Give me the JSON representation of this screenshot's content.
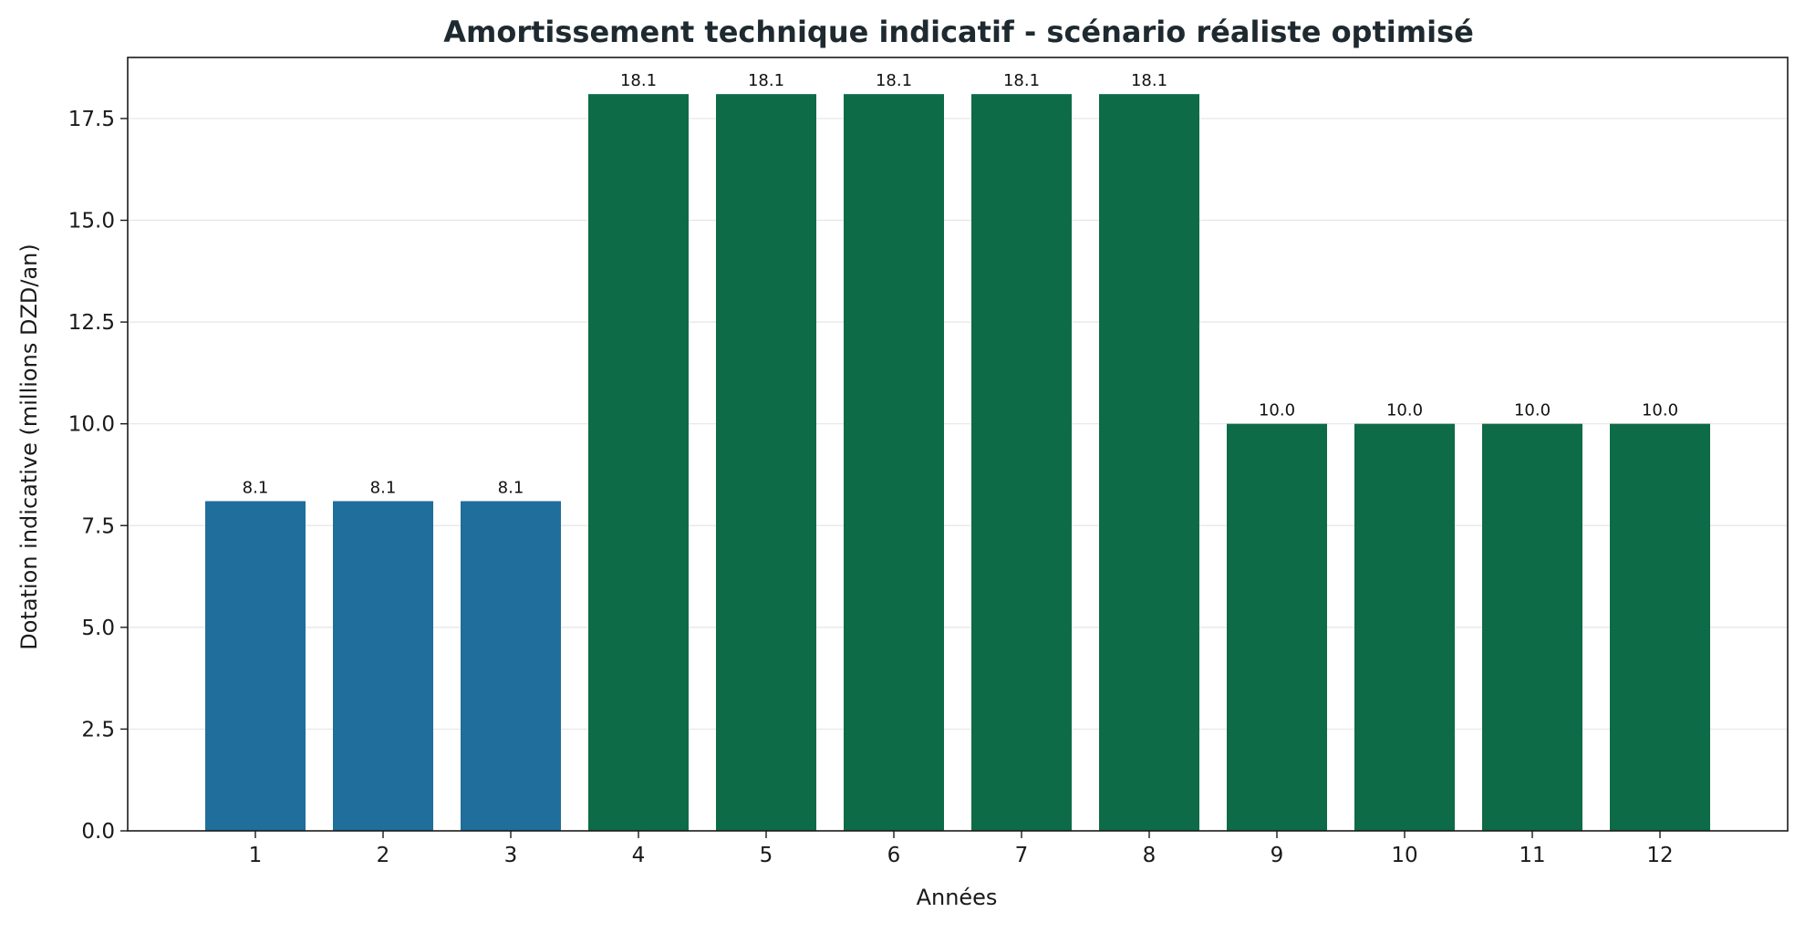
{
  "chart_data": {
    "type": "bar",
    "title": "Amortissement technique indicatif - scénario réaliste optimisé",
    "xlabel": "Années",
    "ylabel": "Dotation indicative (millions DZD/an)",
    "categories": [
      "1",
      "2",
      "3",
      "4",
      "5",
      "6",
      "7",
      "8",
      "9",
      "10",
      "11",
      "12"
    ],
    "values": [
      8.1,
      8.1,
      8.1,
      18.1,
      18.1,
      18.1,
      18.1,
      18.1,
      10.0,
      10.0,
      10.0,
      10.0
    ],
    "value_labels": [
      "8.1",
      "8.1",
      "8.1",
      "18.1",
      "18.1",
      "18.1",
      "18.1",
      "18.1",
      "10.0",
      "10.0",
      "10.0",
      "10.0"
    ],
    "bar_colors": [
      "#1f6e9c",
      "#1f6e9c",
      "#1f6e9c",
      "#0e6b47",
      "#0e6b47",
      "#0e6b47",
      "#0e6b47",
      "#0e6b47",
      "#0e6b47",
      "#0e6b47",
      "#0e6b47",
      "#0e6b47"
    ],
    "ylim": [
      0,
      19.0
    ],
    "yticks": [
      0.0,
      2.5,
      5.0,
      7.5,
      10.0,
      12.5,
      15.0,
      17.5
    ],
    "ytick_labels": [
      "0.0",
      "2.5",
      "5.0",
      "7.5",
      "10.0",
      "12.5",
      "15.0",
      "17.5"
    ],
    "grid": "horizontal",
    "legend": "none"
  }
}
